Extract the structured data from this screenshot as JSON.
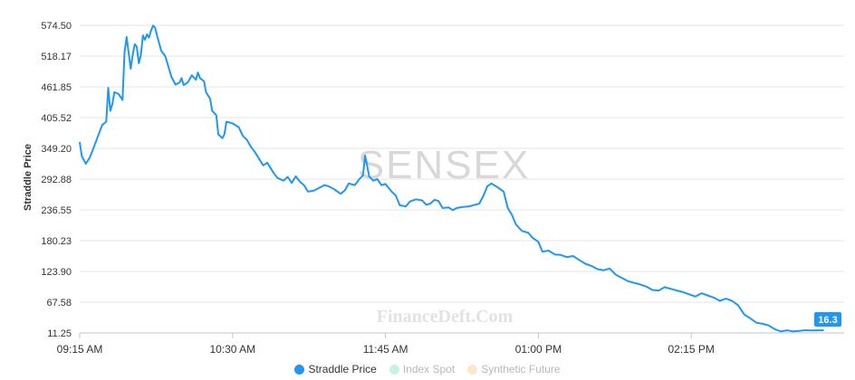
{
  "watermark": {
    "index": "SENSEX",
    "site": "FinanceDeft.Com"
  },
  "legend": [
    {
      "label": "Straddle Price",
      "color": "#2196f3",
      "active": true
    },
    {
      "label": "Index Spot",
      "color": "#c8f0e4",
      "active": false
    },
    {
      "label": "Synthetic Future",
      "color": "#fbe8cc",
      "active": false
    }
  ],
  "last_value_label": "16.3",
  "chart_data": {
    "type": "line",
    "ylabel": "Straddle Price",
    "xlabel": "",
    "ylim": [
      11.25,
      574.5
    ],
    "yticks": [
      "11.25",
      "67.58",
      "123.90",
      "180.23",
      "236.55",
      "292.88",
      "349.20",
      "405.52",
      "461.85",
      "518.17",
      "574.50"
    ],
    "xlim": [
      "09:15",
      "15:30"
    ],
    "xticks": [
      {
        "t": "09:15",
        "label": "09:15 AM"
      },
      {
        "t": "10:30",
        "label": "10:30 AM"
      },
      {
        "t": "11:45",
        "label": "11:45 AM"
      },
      {
        "t": "13:00",
        "label": "01:00 PM"
      },
      {
        "t": "14:15",
        "label": "02:15 PM"
      }
    ],
    "grid": true,
    "series": [
      {
        "name": "Straddle Price",
        "color": "#2196f3",
        "points": [
          [
            "09:15",
            361
          ],
          [
            "09:16",
            335
          ],
          [
            "09:18",
            321
          ],
          [
            "09:20",
            333
          ],
          [
            "09:22",
            352
          ],
          [
            "09:24",
            372
          ],
          [
            "09:26",
            392
          ],
          [
            "09:28",
            398
          ],
          [
            "09:29",
            460
          ],
          [
            "09:30",
            418
          ],
          [
            "09:31",
            430
          ],
          [
            "09:32",
            452
          ],
          [
            "09:34",
            449
          ],
          [
            "09:36",
            438
          ],
          [
            "09:37",
            525
          ],
          [
            "09:38",
            553
          ],
          [
            "09:39",
            525
          ],
          [
            "09:40",
            495
          ],
          [
            "09:41",
            520
          ],
          [
            "09:42",
            540
          ],
          [
            "09:43",
            535
          ],
          [
            "09:44",
            505
          ],
          [
            "09:45",
            520
          ],
          [
            "09:46",
            556
          ],
          [
            "09:47",
            548
          ],
          [
            "09:48",
            558
          ],
          [
            "09:49",
            552
          ],
          [
            "09:50",
            565
          ],
          [
            "09:51",
            574
          ],
          [
            "09:52",
            570
          ],
          [
            "09:53",
            555
          ],
          [
            "09:55",
            528
          ],
          [
            "09:57",
            518
          ],
          [
            "09:59",
            493
          ],
          [
            "10:00",
            480
          ],
          [
            "10:02",
            466
          ],
          [
            "10:04",
            470
          ],
          [
            "10:05",
            478
          ],
          [
            "10:06",
            465
          ],
          [
            "10:08",
            470
          ],
          [
            "10:10",
            483
          ],
          [
            "10:12",
            475
          ],
          [
            "10:13",
            488
          ],
          [
            "10:14",
            478
          ],
          [
            "10:16",
            472
          ],
          [
            "10:17",
            452
          ],
          [
            "10:19",
            440
          ],
          [
            "10:20",
            418
          ],
          [
            "10:22",
            410
          ],
          [
            "10:23",
            375
          ],
          [
            "10:25",
            368
          ],
          [
            "10:26",
            375
          ],
          [
            "10:27",
            398
          ],
          [
            "10:30",
            395
          ],
          [
            "10:33",
            388
          ],
          [
            "10:35",
            372
          ],
          [
            "10:37",
            365
          ],
          [
            "10:39",
            352
          ],
          [
            "10:41",
            342
          ],
          [
            "10:43",
            330
          ],
          [
            "10:45",
            318
          ],
          [
            "10:47",
            323
          ],
          [
            "10:50",
            305
          ],
          [
            "10:52",
            295
          ],
          [
            "10:55",
            290
          ],
          [
            "10:57",
            297
          ],
          [
            "10:59",
            286
          ],
          [
            "11:01",
            298
          ],
          [
            "11:03",
            288
          ],
          [
            "11:05",
            282
          ],
          [
            "11:07",
            270
          ],
          [
            "11:10",
            272
          ],
          [
            "11:13",
            278
          ],
          [
            "11:15",
            282
          ],
          [
            "11:17",
            280
          ],
          [
            "11:20",
            274
          ],
          [
            "11:23",
            266
          ],
          [
            "11:25",
            272
          ],
          [
            "11:27",
            285
          ],
          [
            "11:30",
            282
          ],
          [
            "11:32",
            292
          ],
          [
            "11:34",
            300
          ],
          [
            "11:35",
            336
          ],
          [
            "11:36",
            318
          ],
          [
            "11:37",
            298
          ],
          [
            "11:39",
            290
          ],
          [
            "11:41",
            293
          ],
          [
            "11:43",
            282
          ],
          [
            "11:45",
            284
          ],
          [
            "11:48",
            270
          ],
          [
            "11:50",
            263
          ],
          [
            "11:52",
            245
          ],
          [
            "11:55",
            243
          ],
          [
            "11:57",
            252
          ],
          [
            "12:00",
            256
          ],
          [
            "12:03",
            254
          ],
          [
            "12:05",
            246
          ],
          [
            "12:07",
            248
          ],
          [
            "12:09",
            255
          ],
          [
            "12:11",
            253
          ],
          [
            "12:13",
            240
          ],
          [
            "12:16",
            241
          ],
          [
            "12:18",
            236
          ],
          [
            "12:20",
            240
          ],
          [
            "12:23",
            242
          ],
          [
            "12:26",
            243
          ],
          [
            "12:29",
            246
          ],
          [
            "12:31",
            248
          ],
          [
            "12:33",
            262
          ],
          [
            "12:35",
            280
          ],
          [
            "12:37",
            285
          ],
          [
            "12:40",
            278
          ],
          [
            "12:43",
            270
          ],
          [
            "12:45",
            240
          ],
          [
            "12:47",
            228
          ],
          [
            "12:49",
            210
          ],
          [
            "12:52",
            198
          ],
          [
            "12:55",
            195
          ],
          [
            "12:57",
            186
          ],
          [
            "13:00",
            178
          ],
          [
            "13:02",
            160
          ],
          [
            "13:05",
            162
          ],
          [
            "13:08",
            155
          ],
          [
            "13:11",
            154
          ],
          [
            "13:14",
            150
          ],
          [
            "13:17",
            152
          ],
          [
            "13:20",
            145
          ],
          [
            "13:23",
            138
          ],
          [
            "13:26",
            134
          ],
          [
            "13:29",
            128
          ],
          [
            "13:32",
            126
          ],
          [
            "13:35",
            129
          ],
          [
            "13:38",
            118
          ],
          [
            "13:41",
            112
          ],
          [
            "13:44",
            106
          ],
          [
            "13:47",
            103
          ],
          [
            "13:50",
            100
          ],
          [
            "13:53",
            96
          ],
          [
            "13:56",
            90
          ],
          [
            "13:59",
            89
          ],
          [
            "14:02",
            95
          ],
          [
            "14:05",
            92
          ],
          [
            "14:08",
            89
          ],
          [
            "14:11",
            86
          ],
          [
            "14:14",
            82
          ],
          [
            "14:17",
            78
          ],
          [
            "14:20",
            84
          ],
          [
            "14:23",
            80
          ],
          [
            "14:26",
            76
          ],
          [
            "14:29",
            70
          ],
          [
            "14:32",
            74
          ],
          [
            "14:35",
            70
          ],
          [
            "14:38",
            62
          ],
          [
            "14:41",
            45
          ],
          [
            "14:44",
            38
          ],
          [
            "14:47",
            30
          ],
          [
            "14:50",
            28
          ],
          [
            "14:53",
            25
          ],
          [
            "14:56",
            18
          ],
          [
            "14:59",
            14
          ],
          [
            "15:02",
            16
          ],
          [
            "15:05",
            14
          ],
          [
            "15:08",
            15
          ],
          [
            "15:11",
            16.3
          ],
          [
            "15:14",
            15.8
          ],
          [
            "15:17",
            16.1
          ],
          [
            "15:20",
            16.3
          ]
        ]
      }
    ]
  }
}
